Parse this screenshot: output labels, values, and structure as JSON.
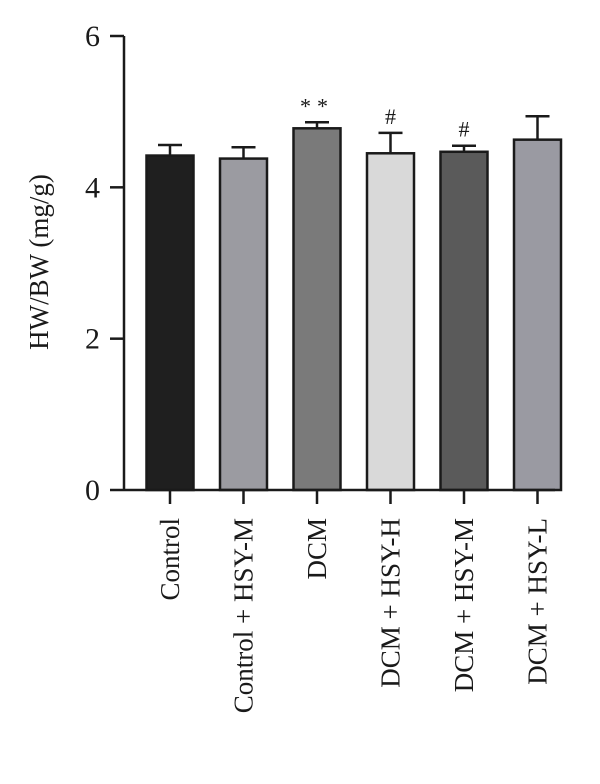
{
  "chart_data": {
    "type": "bar",
    "title": "",
    "xlabel": "",
    "ylabel": "HW/BW (mg/g)",
    "ylim": [
      0,
      6
    ],
    "yticks": [
      0,
      2,
      4,
      6
    ],
    "grid": false,
    "categories": [
      "Control",
      "Control + HSY-M",
      "DCM",
      "DCM + HSY-H",
      "DCM + HSY-M",
      "DCM + HSY-L"
    ],
    "values": [
      4.42,
      4.38,
      4.78,
      4.45,
      4.47,
      4.63
    ],
    "errors": [
      0.14,
      0.15,
      0.08,
      0.27,
      0.08,
      0.31
    ],
    "annotations": [
      "",
      "",
      "**",
      "#",
      "#",
      ""
    ],
    "colors": [
      "#1f1f1f",
      "#9b9ba1",
      "#7a7a7a",
      "#d9d9d9",
      "#5a5a5a",
      "#9a9aa2"
    ]
  }
}
